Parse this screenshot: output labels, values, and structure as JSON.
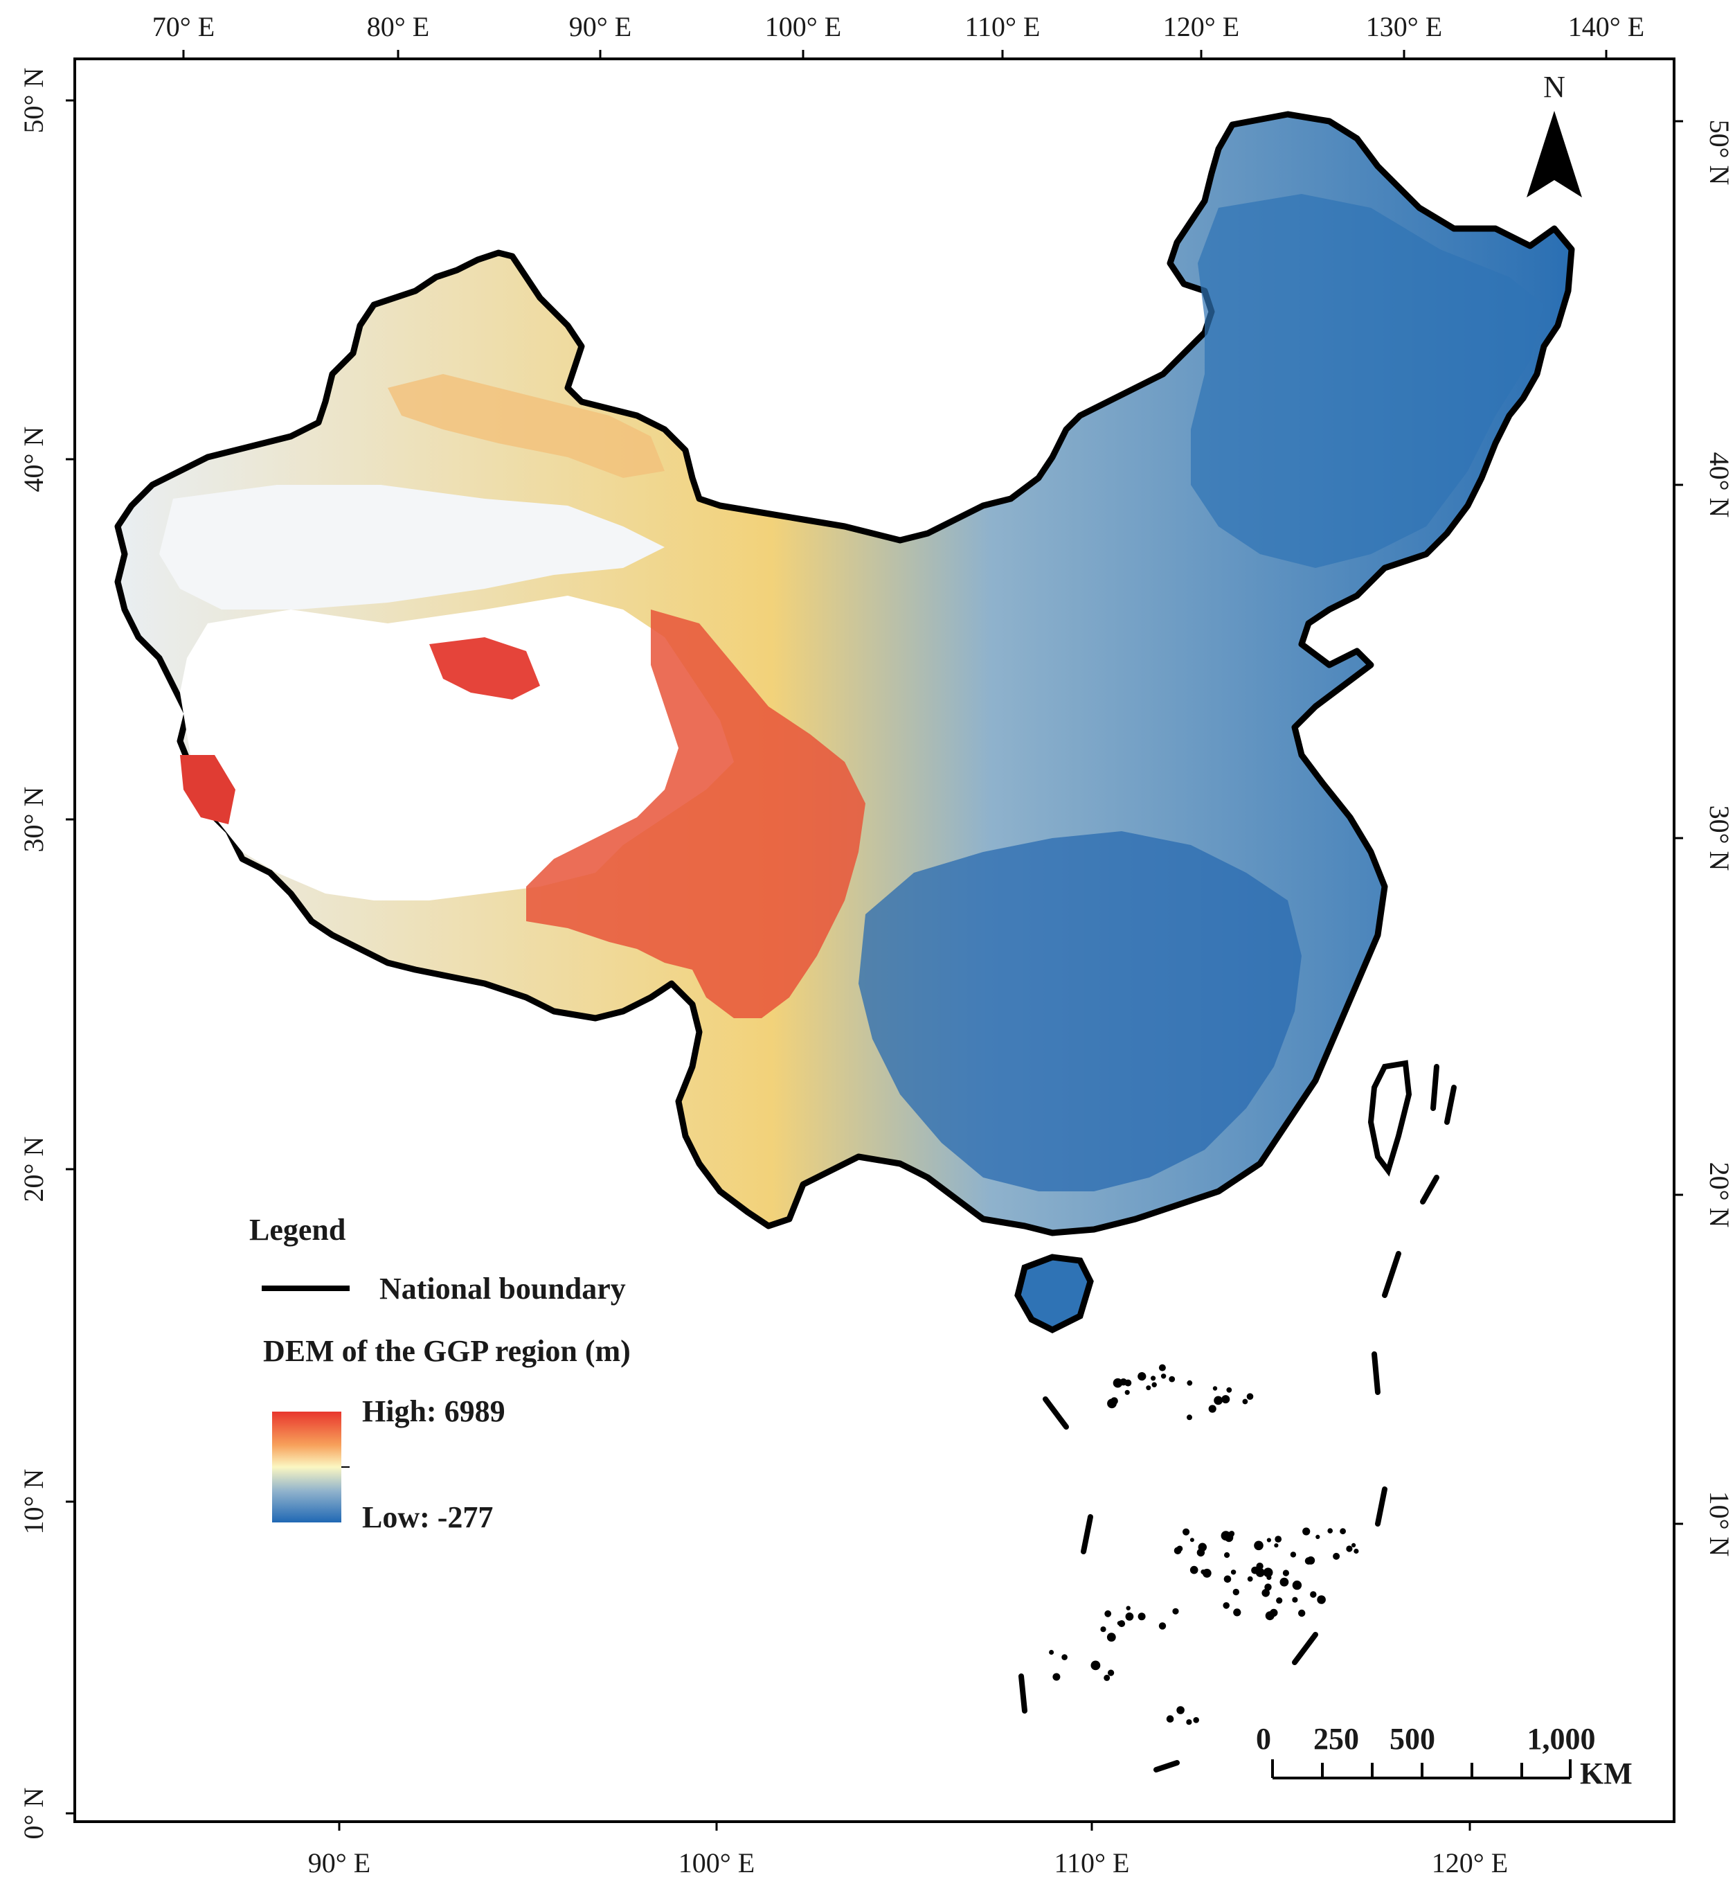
{
  "top_axis_labels": [
    "70° E",
    "80° E",
    "90° E",
    "100° E",
    "110° E",
    "120° E",
    "130° E",
    "140° E"
  ],
  "bottom_axis_labels": [
    "90° E",
    "100° E",
    "110° E",
    "120° E"
  ],
  "left_axis_labels": [
    "50° N",
    "40° N",
    "30° N",
    "20° N",
    "10° N",
    "0° N"
  ],
  "right_axis_labels": [
    "50° N",
    "40° N",
    "30° N",
    "20° N",
    "10° N"
  ],
  "north_arrow": {
    "label": "N",
    "icon": "north-arrow-icon"
  },
  "legend": {
    "title": "Legend",
    "boundary_label": "National boundary",
    "dem_title": "DEM of the GGP region (m)",
    "high_label": "High: 6989",
    "low_label": "Low: -277",
    "ramp_colors": [
      "#e8362d",
      "#f7a05a",
      "#fbf7c2",
      "#8fb2cc",
      "#2068b4"
    ]
  },
  "scale_bar": {
    "ticks": [
      "0",
      "250",
      "500",
      "1,000"
    ],
    "unit": "KM"
  },
  "colors": {
    "boundary": "#000000",
    "high": "#e8362d",
    "mid": "#fbf7c2",
    "low": "#2068b4",
    "no_data": "#ffffff"
  }
}
